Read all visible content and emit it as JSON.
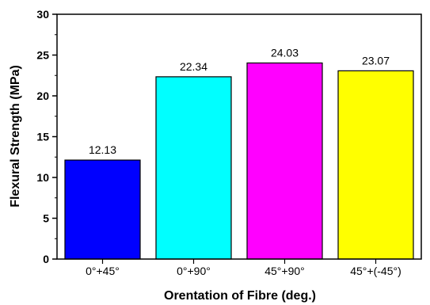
{
  "chart_data": {
    "type": "bar",
    "categories": [
      "0°+45°",
      "0°+90°",
      "45°+90°",
      "45°+(-45°)"
    ],
    "values": [
      12.13,
      22.34,
      24.03,
      23.07
    ],
    "data_labels": [
      "12.13",
      "22.34",
      "24.03",
      "23.07"
    ],
    "colors": [
      "#0000ff",
      "#00ffff",
      "#ff00ff",
      "#ffff00"
    ],
    "xlabel": "Orentation of Fibre (deg.)",
    "ylabel": "Flexural Strength (MPa)",
    "ylim": [
      0,
      30
    ],
    "yticks": [
      "0",
      "5",
      "10",
      "15",
      "20",
      "25",
      "30"
    ],
    "grid": false,
    "legend": "none"
  }
}
